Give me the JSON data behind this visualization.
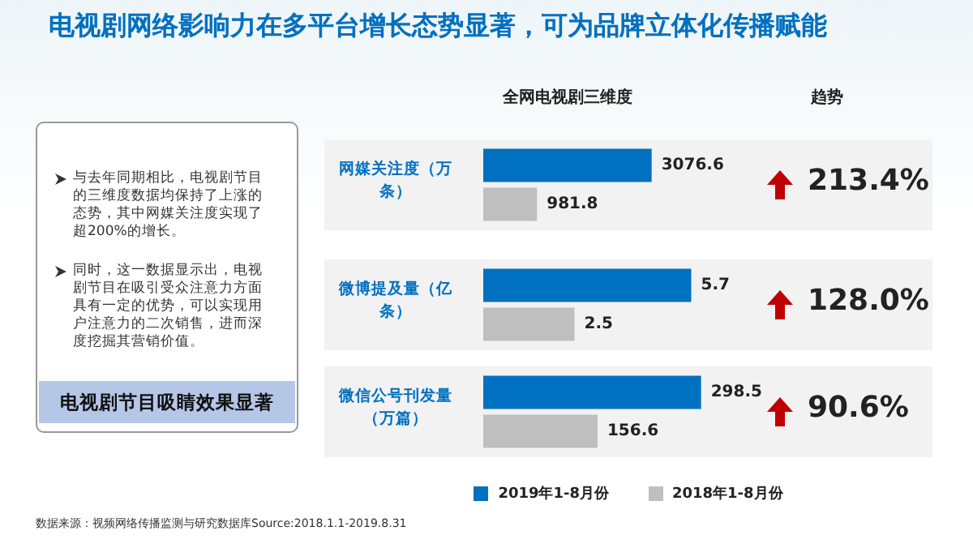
{
  "chart_data": [
    {
      "type": "other",
      "title": "电视剧网络影响力在多平台增长态势显著，可为品牌立体化传播赋能",
      "annotations": [
        "与去年同期相比，电视剧节目的三维度数据均保持了上涨的态势，其中网媒关注度实现了超200%的增长。",
        "同时，这一数据显示出，电视剧节目在吸引受众注意力方面具有一定的优势，可以实现用户注意力的二次销售，进而深度挖掘其营销价值。",
        "电视剧节目吸睛效果显著",
        "全网电视剧三维度",
        "趋势",
        "数据来源：视频网络传播监测与研究数据库Source:2018.1.1-2019.8.31"
      ]
    },
    {
      "type": "bar",
      "orientation": "horizontal",
      "categories": [
        "网媒关注度（万条）"
      ],
      "data_labels": true,
      "legend": "bottom",
      "annotations": [
        "213.4%"
      ],
      "series": [
        {
          "name": "2019年1-8月份",
          "color": "#0070c0",
          "values": [
            3076.6
          ]
        },
        {
          "name": "2018年1-8月份",
          "color": "#bfbfbf",
          "values": [
            981.8
          ]
        }
      ]
    },
    {
      "type": "bar",
      "orientation": "horizontal",
      "categories": [
        "微博提及量（亿条）"
      ],
      "data_labels": true,
      "annotations": [
        "128.0%"
      ],
      "series": [
        {
          "color": "#0070c0",
          "values": [
            5.7
          ]
        },
        {
          "color": "#bfbfbf",
          "values": [
            2.5
          ]
        }
      ]
    },
    {
      "type": "bar",
      "orientation": "horizontal",
      "categories": [
        "微信公号刊发量（万篇）"
      ],
      "data_labels": true,
      "annotations": [
        "90.6%"
      ],
      "series": [
        {
          "color": "#0070c0",
          "values": [
            298.5
          ]
        },
        {
          "color": "#bfbfbf",
          "values": [
            156.6
          ]
        }
      ]
    }
  ]
}
